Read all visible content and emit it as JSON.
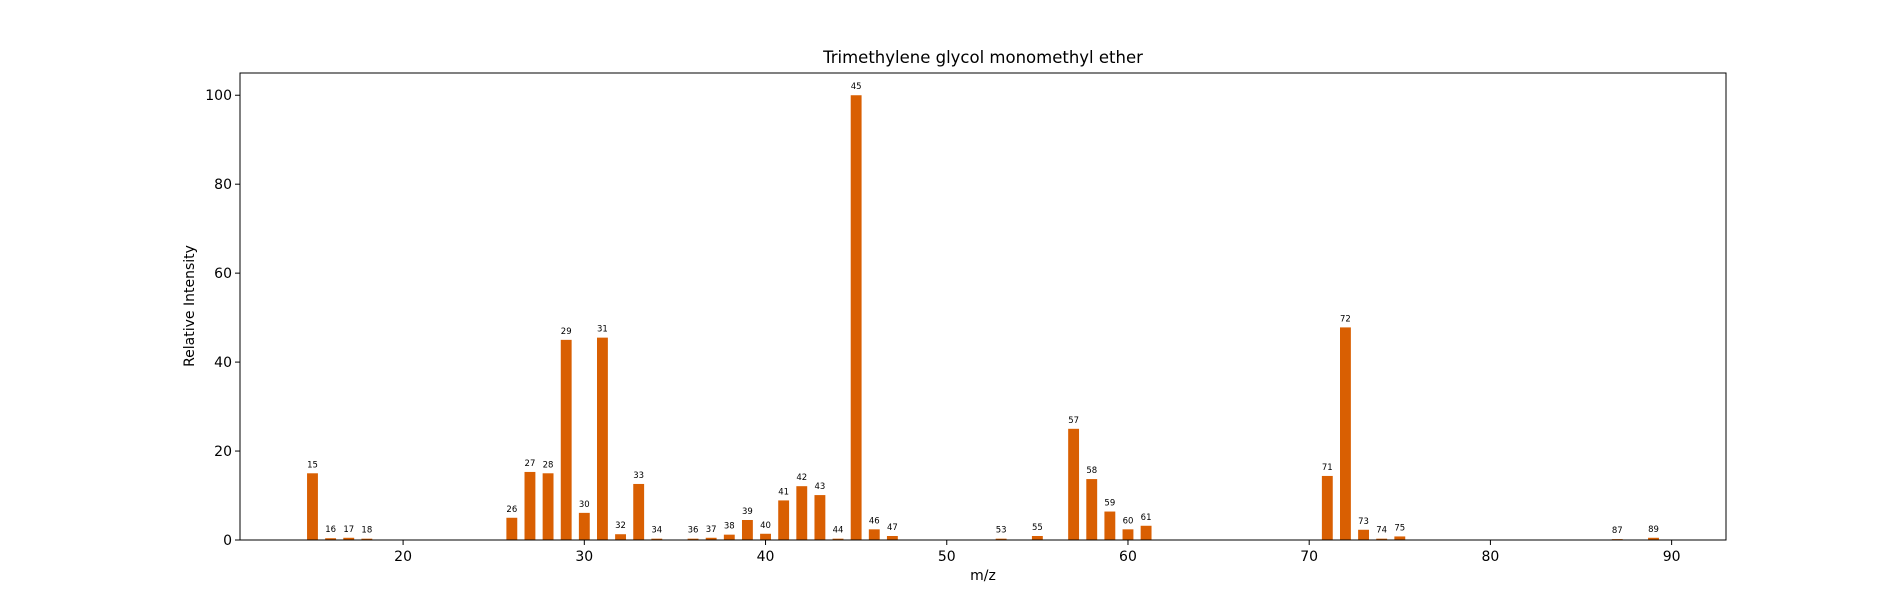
{
  "chart_data": {
    "type": "bar",
    "title": "Trimethylene glycol monomethyl ether",
    "xlabel": "m/z",
    "ylabel": "Relative Intensity",
    "xlim": [
      11,
      93
    ],
    "ylim": [
      0,
      105
    ],
    "xticks": [
      20,
      30,
      40,
      50,
      60,
      70,
      80,
      90
    ],
    "yticks": [
      0,
      20,
      40,
      60,
      80,
      100
    ],
    "grid": false,
    "color": "#d95f02",
    "x": [
      15,
      16,
      17,
      18,
      26,
      27,
      28,
      29,
      30,
      31,
      32,
      33,
      34,
      36,
      37,
      38,
      39,
      40,
      41,
      42,
      43,
      44,
      45,
      46,
      47,
      53,
      55,
      57,
      58,
      59,
      60,
      61,
      71,
      72,
      73,
      74,
      75,
      87,
      89
    ],
    "values": [
      15.0,
      0.4,
      0.5,
      0.3,
      5.0,
      15.3,
      15.0,
      45.0,
      6.1,
      45.5,
      1.3,
      12.6,
      0.3,
      0.3,
      0.5,
      1.2,
      4.5,
      1.4,
      8.9,
      12.1,
      10.1,
      0.3,
      100.0,
      2.4,
      0.9,
      0.3,
      0.9,
      25.0,
      13.7,
      6.4,
      2.4,
      3.2,
      14.4,
      47.8,
      2.3,
      0.3,
      0.8,
      0.2,
      0.5
    ],
    "labels": [
      "15",
      "16",
      "17",
      "18",
      "26",
      "27",
      "28",
      "29",
      "30",
      "31",
      "32",
      "33",
      "34",
      "36",
      "37",
      "38",
      "39",
      "40",
      "41",
      "42",
      "43",
      "44",
      "45",
      "46",
      "47",
      "53",
      "55",
      "57",
      "58",
      "59",
      "60",
      "61",
      "71",
      "72",
      "73",
      "74",
      "75",
      "87",
      "89"
    ]
  }
}
